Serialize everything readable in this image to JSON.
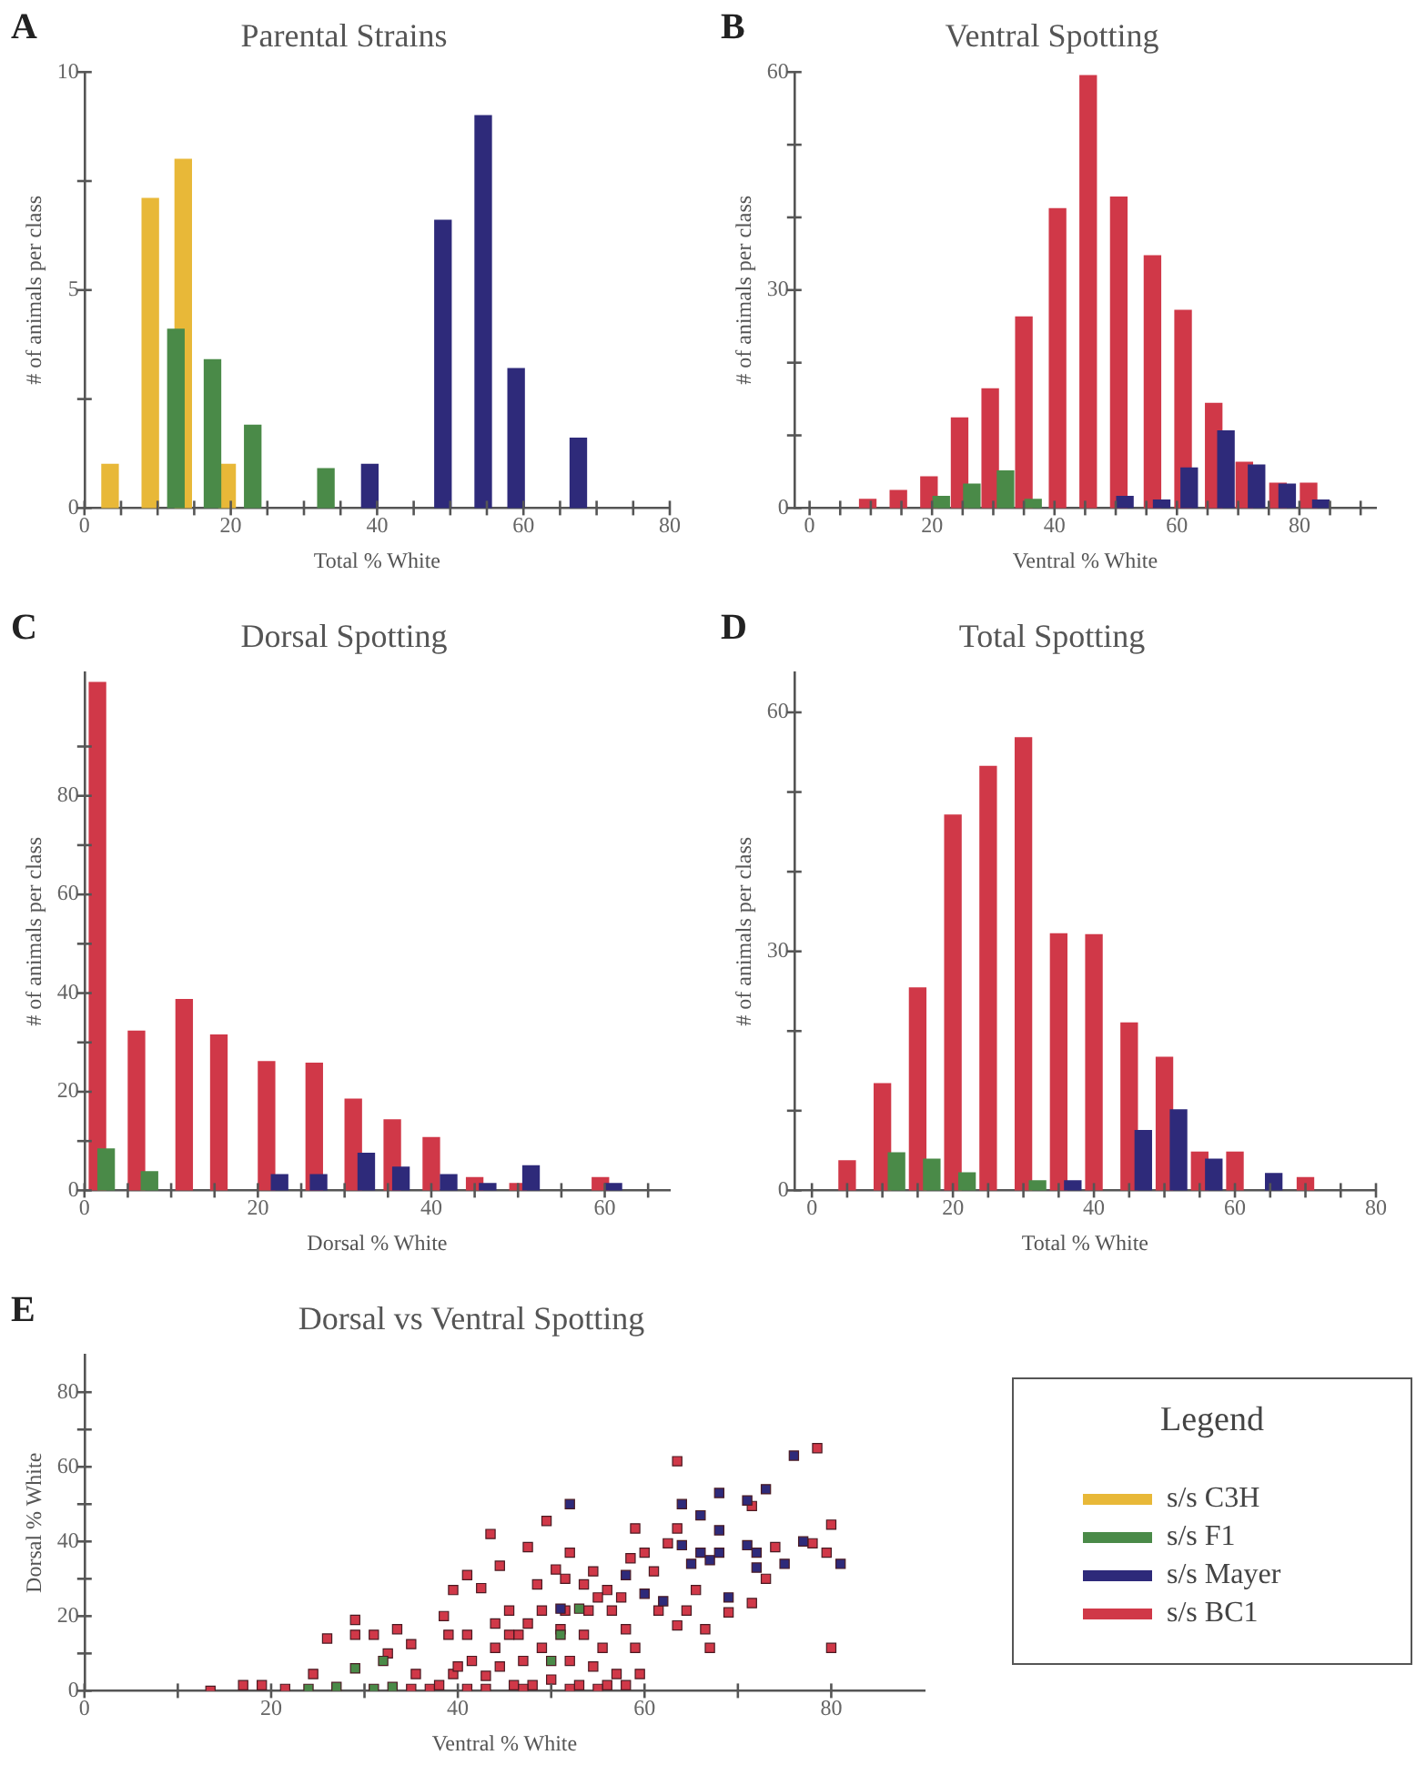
{
  "chart_data": [
    {
      "type": "bar",
      "title": "Parental Strains",
      "xlabel": "Total % White",
      "ylabel": "# of animals per class",
      "annotations": [
        "A"
      ],
      "series": [
        {
          "color": "#4a8a48",
          "x": [
            12.5,
            17.5,
            23,
            33
          ],
          "values": [
            4.1,
            3.4,
            1.9,
            0.9
          ]
        },
        {
          "color": "#e8b838",
          "x": [
            3.5,
            9,
            13.5,
            19.5
          ],
          "values": [
            1,
            7.1,
            8,
            1
          ]
        },
        {
          "color": "#2e2a7a",
          "x": [
            39,
            49,
            54.5,
            59,
            67.5
          ],
          "values": [
            1,
            6.6,
            9,
            3.2,
            1.6
          ]
        }
      ],
      "xlim": [
        0,
        80
      ],
      "xticks": [
        0,
        {
          "value": 5,
          "label": null
        },
        {
          "value": 10,
          "label": null
        },
        {
          "value": 15,
          "label": null
        },
        20,
        {
          "value": 25,
          "label": null
        },
        {
          "value": 30,
          "label": null
        },
        {
          "value": 35,
          "label": null
        },
        40,
        {
          "value": 45,
          "label": null
        },
        {
          "value": 50,
          "label": null
        },
        {
          "value": 55,
          "label": null
        },
        60,
        {
          "value": 65,
          "label": null
        },
        {
          "value": 70,
          "label": null
        },
        {
          "value": 75,
          "label": null
        },
        80
      ],
      "ylim": [
        0,
        10
      ],
      "yticks": [
        0,
        {
          "value": 2.5,
          "label": null
        },
        5,
        {
          "value": 7.5,
          "label": null
        },
        10
      ]
    },
    {
      "type": "bar",
      "title": "Ventral Spotting",
      "xlabel": "Ventral % White",
      "ylabel": "# of animals per class",
      "annotations": [
        "B"
      ],
      "series": [
        {
          "color": "#4a8a48",
          "x": [
            21.5,
            26.5,
            32,
            36.5
          ],
          "values": [
            1.6,
            3.3,
            5.1,
            1.2
          ]
        },
        {
          "color": "#2e2a7a",
          "x": [
            51.5,
            57.5,
            62,
            68,
            73,
            78,
            83.5
          ],
          "values": [
            1.6,
            1.1,
            5.5,
            10.6,
            5.9,
            3.3,
            1.1
          ]
        },
        {
          "color": "#d03848",
          "x": [
            9.5,
            14.5,
            19.5,
            24.5,
            29.5,
            35,
            40.5,
            45.5,
            50.5,
            56,
            61,
            66,
            71,
            76.5,
            81.5
          ],
          "values": [
            1.2,
            2.4,
            4.3,
            12.4,
            16.4,
            26.3,
            41.2,
            59.5,
            42.8,
            34.7,
            27.2,
            14.4,
            6.3,
            3.4,
            3.4
          ]
        }
      ],
      "xlim": [
        -2.5,
        92.5
      ],
      "xticks": [
        0,
        {
          "value": 5,
          "label": null
        },
        {
          "value": 10,
          "label": null
        },
        {
          "value": 15,
          "label": null
        },
        20,
        {
          "value": 25,
          "label": null
        },
        {
          "value": 30,
          "label": null
        },
        {
          "value": 35,
          "label": null
        },
        40,
        {
          "value": 45,
          "label": null
        },
        {
          "value": 50,
          "label": null
        },
        {
          "value": 55,
          "label": null
        },
        60,
        {
          "value": 65,
          "label": null
        },
        {
          "value": 70,
          "label": null
        },
        {
          "value": 75,
          "label": null
        },
        80,
        {
          "value": 85,
          "label": null
        },
        {
          "value": 90,
          "label": null
        }
      ],
      "ylim": [
        0,
        60
      ],
      "yticks": [
        0,
        {
          "value": 10,
          "label": null
        },
        {
          "value": 20,
          "label": null
        },
        30,
        {
          "value": 40,
          "label": null
        },
        {
          "value": 50,
          "label": null
        },
        60
      ]
    },
    {
      "type": "bar",
      "title": "Dorsal Spotting",
      "xlabel": "Dorsal % White",
      "ylabel": "# of animals per class",
      "annotations": [
        "C"
      ],
      "series": [
        {
          "color": "#4a8a48",
          "x": [
            2.5,
            7.5
          ],
          "values": [
            8.4,
            3.8
          ]
        },
        {
          "color": "#2e2a7a",
          "x": [
            22.5,
            27,
            32.5,
            36.5,
            42,
            46.5,
            51.5,
            61
          ],
          "values": [
            3.2,
            3.2,
            7.5,
            4.7,
            3.2,
            1.4,
            5,
            1.4
          ]
        },
        {
          "color": "#d03848",
          "x": [
            1.5,
            6,
            11.5,
            15.5,
            21,
            26.5,
            31,
            35.5,
            40,
            45,
            50,
            59.5
          ],
          "values": [
            103,
            32.3,
            38.7,
            31.5,
            26.1,
            25.8,
            18.5,
            14.3,
            10.7,
            2.6,
            1.4,
            2.6
          ]
        }
      ],
      "xlim": [
        0,
        67.5
      ],
      "xticks": [
        0,
        {
          "value": 5,
          "label": null
        },
        {
          "value": 10,
          "label": null
        },
        {
          "value": 15,
          "label": null
        },
        20,
        {
          "value": 25,
          "label": null
        },
        {
          "value": 30,
          "label": null
        },
        {
          "value": 35,
          "label": null
        },
        40,
        {
          "value": 45,
          "label": null
        },
        {
          "value": 50,
          "label": null
        },
        {
          "value": 55,
          "label": null
        },
        60,
        {
          "value": 65,
          "label": null
        }
      ],
      "ylim": [
        0,
        105
      ],
      "yticks": [
        0,
        {
          "value": 10,
          "label": null
        },
        20,
        {
          "value": 30,
          "label": null
        },
        40,
        {
          "value": 50,
          "label": null
        },
        60,
        {
          "value": 70,
          "label": null
        },
        80,
        {
          "value": 90,
          "label": null
        }
      ]
    },
    {
      "type": "bar",
      "title": "Total Spotting",
      "xlabel": "Total % White",
      "ylabel": "# of animals per class",
      "annotations": [
        "D"
      ],
      "series": [
        {
          "color": "#4a8a48",
          "x": [
            12,
            17,
            22,
            32
          ],
          "values": [
            4.7,
            3.9,
            2.2,
            1.2
          ]
        },
        {
          "color": "#2e2a7a",
          "x": [
            37,
            47,
            52,
            57,
            65.5
          ],
          "values": [
            1.2,
            7.5,
            10.1,
            3.9,
            2.1
          ]
        },
        {
          "color": "#d03848",
          "x": [
            5,
            10,
            15,
            20,
            25,
            30,
            35,
            40,
            45,
            50,
            55,
            60,
            70
          ],
          "values": [
            3.7,
            13.4,
            25.4,
            47.1,
            53.2,
            56.8,
            32.2,
            32.1,
            21,
            16.7,
            4.8,
            4.8,
            1.6
          ]
        }
      ],
      "xlim": [
        -2.5,
        80
      ],
      "xticks": [
        0,
        {
          "value": 5,
          "label": null
        },
        {
          "value": 10,
          "label": null
        },
        {
          "value": 15,
          "label": null
        },
        20,
        {
          "value": 25,
          "label": null
        },
        {
          "value": 30,
          "label": null
        },
        {
          "value": 35,
          "label": null
        },
        40,
        {
          "value": 45,
          "label": null
        },
        {
          "value": 50,
          "label": null
        },
        {
          "value": 55,
          "label": null
        },
        60,
        {
          "value": 65,
          "label": null
        },
        {
          "value": 70,
          "label": null
        },
        {
          "value": 75,
          "label": null
        },
        80
      ],
      "ylim": [
        0,
        65
      ],
      "yticks": [
        0,
        {
          "value": 10,
          "label": null
        },
        {
          "value": 20,
          "label": null
        },
        30,
        {
          "value": 40,
          "label": null
        },
        {
          "value": 50,
          "label": null
        },
        60
      ]
    },
    {
      "type": "scatter",
      "title": "Dorsal vs Ventral Spotting",
      "xlabel": "Ventral % White",
      "ylabel": "Dorsal % White",
      "annotations": [
        "E"
      ],
      "legend": "right",
      "legend_title": "Legend",
      "marker": "square",
      "series": [
        {
          "name": "s/s C3H",
          "color": "#e8b838"
        },
        {
          "name": "s/s F1",
          "color": "#4a8a48",
          "x": [
            32,
            29,
            24,
            27,
            31,
            33,
            50,
            51,
            53
          ],
          "values": [
            8,
            6,
            0.5,
            1,
            0.5,
            1,
            8,
            15,
            22
          ]
        },
        {
          "name": "s/s Mayer",
          "color": "#2e2a7a",
          "x": [
            52,
            64,
            68,
            71,
            73,
            76,
            66,
            68,
            64,
            66,
            67,
            68,
            65,
            71,
            72,
            72,
            75,
            77,
            81,
            69,
            60,
            62,
            51,
            58
          ],
          "values": [
            50,
            50,
            53,
            51,
            54,
            63,
            47,
            43,
            39,
            37,
            35,
            37,
            34,
            39,
            37,
            33,
            34,
            40,
            34,
            25,
            26,
            24,
            22,
            31
          ]
        },
        {
          "name": "s/s BC1",
          "color": "#d03848",
          "x": [
            63.5,
            78.5,
            80,
            79.5,
            80,
            78,
            74,
            71.5,
            71.5,
            73,
            69,
            67,
            66.5,
            13.5,
            17,
            19,
            21.5,
            24.5,
            26,
            29,
            29,
            31,
            32.5,
            33.5,
            35,
            35.5,
            37,
            38.5,
            39,
            39.5,
            41,
            42.5,
            43.5,
            44.5,
            45.5,
            46.5,
            47.5,
            48.5,
            49.5,
            50.5,
            51.5,
            52,
            53.5,
            54.5,
            56,
            56.5,
            58,
            58.5,
            59,
            60,
            61,
            61.5,
            62.5,
            63.5,
            63.5,
            64.5,
            65.5,
            59.5,
            59,
            41,
            41.5,
            43,
            44,
            44.5,
            46,
            47,
            47.5,
            48,
            49,
            50,
            51,
            52,
            53,
            53.5,
            54.5,
            55.5,
            56,
            57,
            58,
            51.5,
            45.5,
            39.5,
            38,
            35,
            41,
            43,
            47,
            52,
            55,
            40,
            44,
            49,
            54,
            57.5,
            55
          ],
          "values": [
            61.5,
            65,
            44.5,
            37,
            11.5,
            39.5,
            38.5,
            49.5,
            23.5,
            30,
            21,
            11.5,
            16.5,
            0,
            1.5,
            1.5,
            0.5,
            4.5,
            14,
            19,
            15,
            15,
            10,
            16.5,
            12.5,
            4.5,
            0.5,
            20,
            15,
            27,
            31,
            27.5,
            42,
            33.5,
            21.5,
            15,
            38.5,
            28.5,
            45.5,
            32.5,
            30,
            37,
            28.5,
            32,
            27,
            21.5,
            16.5,
            35.5,
            43.5,
            37,
            32,
            21.5,
            39.5,
            43.5,
            17.5,
            21.5,
            27,
            4.5,
            11.5,
            15,
            8,
            4,
            11.5,
            6.5,
            1.5,
            8,
            18,
            1.5,
            11.5,
            3,
            16.5,
            8,
            1.5,
            15,
            6.5,
            11.5,
            1.5,
            4.5,
            1.5,
            21.5,
            15,
            4.5,
            1.5,
            0.5,
            0.5,
            0.5,
            0.5,
            0.5,
            0.5,
            6.5,
            18,
            21.5,
            21.5,
            25,
            25
          ]
        }
      ],
      "xlim": [
        0,
        90
      ],
      "xticks": [
        0,
        {
          "value": 10,
          "label": null
        },
        20,
        {
          "value": 30,
          "label": null
        },
        40,
        {
          "value": 50,
          "label": null
        },
        60,
        {
          "value": 70,
          "label": null
        },
        80
      ],
      "ylim": [
        0,
        90
      ],
      "yticks": [
        0,
        {
          "value": 10,
          "label": null
        },
        20,
        {
          "value": 30,
          "label": null
        },
        40,
        {
          "value": 50,
          "label": null
        },
        60,
        {
          "value": 70,
          "label": null
        },
        80
      ]
    }
  ]
}
